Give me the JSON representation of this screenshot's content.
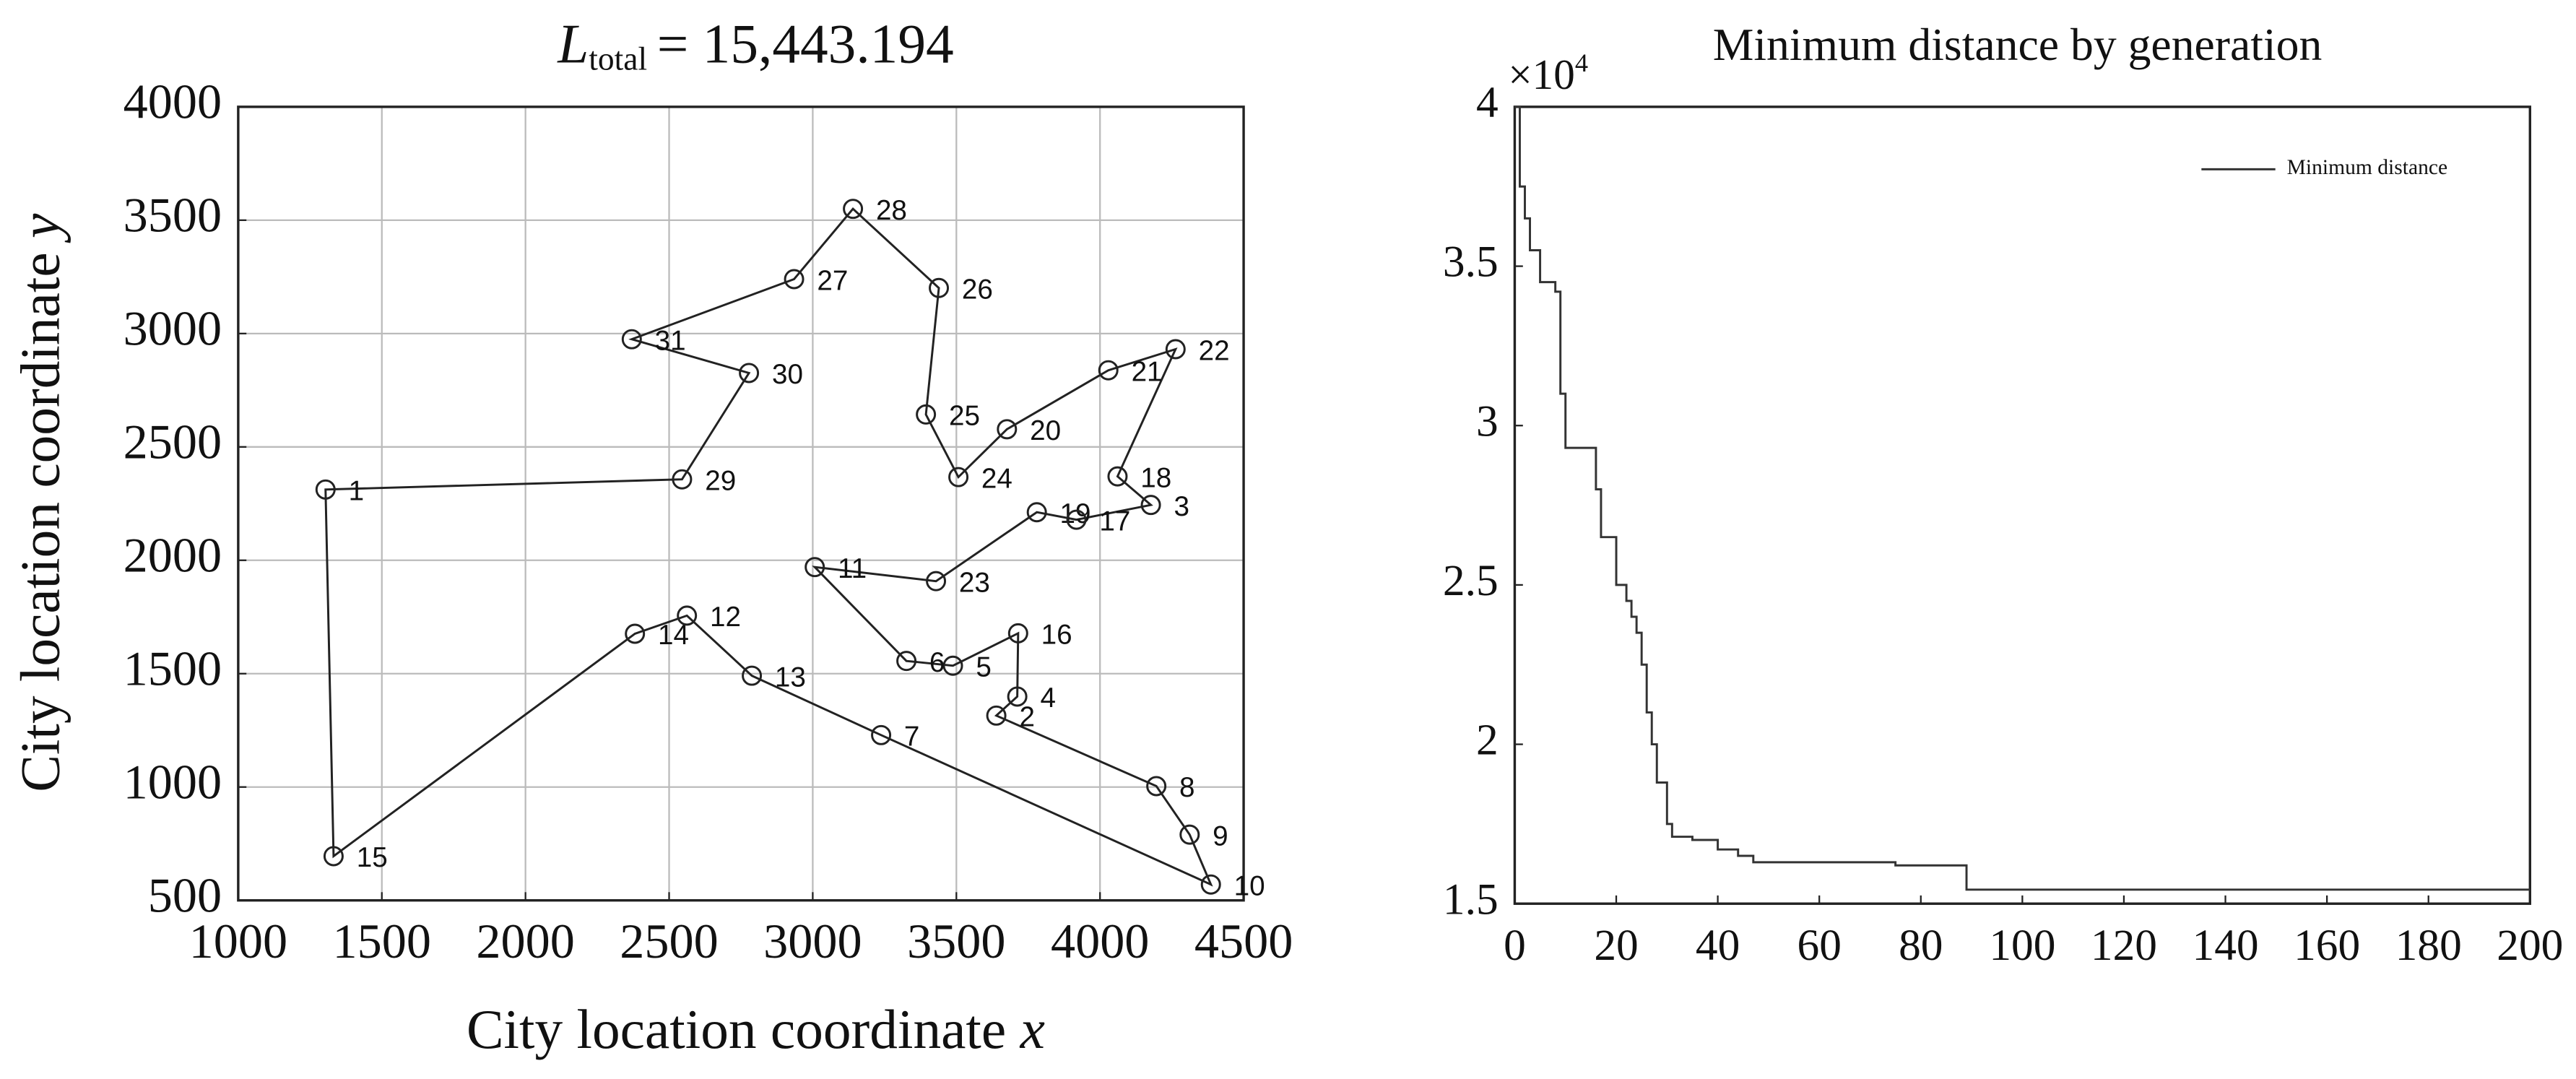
{
  "chart_data": [
    {
      "type": "line",
      "title": {
        "symbol": "L",
        "subscript": "total",
        "text": "= 15,443.194"
      },
      "xlabel": "City location coordinate",
      "xlabel_symbol": "x",
      "ylabel": "City location coordinate",
      "ylabel_symbol": "y",
      "xlim": [
        1000,
        4500
      ],
      "xticks": [
        1000,
        1500,
        2000,
        2500,
        3000,
        3500,
        4000,
        4500
      ],
      "ylim": [
        500,
        4000
      ],
      "yticks": [
        500,
        1000,
        1500,
        2000,
        2500,
        3000,
        3500,
        4000
      ],
      "grid": true,
      "closed": true,
      "markers": true,
      "series": [
        {
          "color": "#222222",
          "x": [
            1304,
            1332,
            2381,
            2562,
            2788,
            3238,
            4386,
            4312,
            4196,
            3639,
            3712,
            3715,
            3488,
            3326,
            3007,
            3429,
            3780,
            3918,
            4177,
            4061,
            4263,
            4029,
            3676,
            3507,
            3394,
            3439,
            3140,
            2935,
            2370,
            2778,
            2545
          ],
          "y": [
            2312,
            695,
            1676,
            1756,
            1491,
            1229,
            570,
            790,
            1004,
            1315,
            1399,
            1678,
            1535,
            1556,
            1970,
            1908,
            2212,
            2179,
            2244,
            2370,
            2931,
            2838,
            2578,
            2367,
            2643,
            3201,
            3550,
            3240,
            2975,
            2826,
            2357
          ],
          "point_labels": [
            "1",
            "15",
            "14",
            "12",
            "13",
            "7",
            "10",
            "9",
            "8",
            "2",
            "4",
            "16",
            "5",
            "6",
            "11",
            "23",
            "19",
            "17",
            "3",
            "18",
            "22",
            "21",
            "20",
            "24",
            "25",
            "26",
            "28",
            "27",
            "31",
            "30",
            "29"
          ]
        }
      ]
    },
    {
      "type": "line",
      "title": "Minimum distance by generation",
      "y_multiplier": {
        "base": "×10",
        "exponent": "4"
      },
      "xlim": [
        0,
        200
      ],
      "xticks": [
        0,
        20,
        40,
        60,
        80,
        100,
        120,
        140,
        160,
        180,
        200
      ],
      "ylim": [
        1.5,
        4
      ],
      "yticks": [
        1.5,
        2,
        2.5,
        3,
        3.5,
        4
      ],
      "grid": false,
      "step": true,
      "legend": "upper right",
      "series": [
        {
          "name": "Minimum distance",
          "color": "#333333",
          "x": [
            0,
            1,
            2,
            3,
            5,
            8,
            9,
            10,
            16,
            17,
            20,
            22,
            23,
            24,
            25,
            26,
            27,
            28,
            30,
            31,
            35,
            40,
            44,
            47,
            75,
            89,
            200
          ],
          "y": [
            4.0,
            3.75,
            3.65,
            3.55,
            3.45,
            3.42,
            3.1,
            2.93,
            2.8,
            2.65,
            2.5,
            2.45,
            2.4,
            2.35,
            2.25,
            2.1,
            2.0,
            1.88,
            1.75,
            1.71,
            1.7,
            1.67,
            1.65,
            1.63,
            1.62,
            1.544,
            1.544
          ]
        }
      ]
    }
  ]
}
